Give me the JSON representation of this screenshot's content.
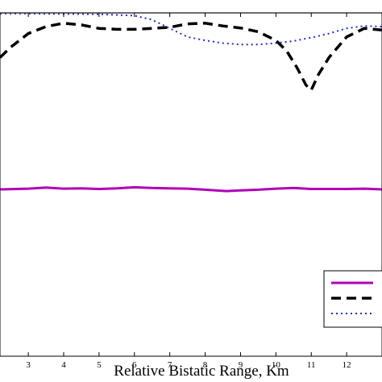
{
  "chart_data": {
    "type": "line",
    "title": "",
    "xlabel": "Relative Bistatic Range, Km",
    "ylabel": "",
    "xlim": [
      2.2,
      13.0
    ],
    "ylim": [
      0,
      1
    ],
    "xticks": [
      3,
      4,
      5,
      6,
      7,
      8,
      9,
      10,
      11,
      12
    ],
    "grid": false,
    "legend_placement": "bottom-right",
    "series": [
      {
        "name": "",
        "style": "solid",
        "color": "#b000b8",
        "x": [
          2.2,
          3.0,
          3.5,
          4.0,
          4.5,
          5.0,
          5.5,
          6.0,
          6.5,
          7.0,
          7.5,
          8.0,
          8.6,
          9.0,
          9.5,
          10.0,
          10.5,
          11.0,
          11.5,
          12.0,
          12.5,
          13.0
        ],
        "y": [
          0.486,
          0.488,
          0.491,
          0.488,
          0.489,
          0.487,
          0.489,
          0.492,
          0.49,
          0.489,
          0.488,
          0.485,
          0.481,
          0.483,
          0.485,
          0.488,
          0.49,
          0.487,
          0.487,
          0.487,
          0.488,
          0.486
        ]
      },
      {
        "name": "",
        "style": "dashed",
        "color": "#000000",
        "x": [
          2.2,
          2.5,
          3.0,
          3.5,
          4.0,
          4.5,
          5.0,
          5.5,
          6.0,
          6.5,
          7.0,
          7.5,
          8.0,
          8.5,
          9.0,
          9.5,
          10.0,
          10.3,
          10.6,
          10.85,
          11.0,
          11.2,
          11.5,
          12.0,
          12.5,
          13.0
        ],
        "y": [
          0.87,
          0.9,
          0.94,
          0.96,
          0.97,
          0.965,
          0.955,
          0.952,
          0.952,
          0.955,
          0.958,
          0.968,
          0.97,
          0.962,
          0.956,
          0.945,
          0.92,
          0.89,
          0.84,
          0.79,
          0.775,
          0.82,
          0.87,
          0.93,
          0.955,
          0.95
        ]
      },
      {
        "name": "",
        "style": "dotted",
        "color": "#1f2fd0",
        "x": [
          2.2,
          3.0,
          4.0,
          5.0,
          6.0,
          6.5,
          7.0,
          7.5,
          8.0,
          8.5,
          9.0,
          9.5,
          10.0,
          10.5,
          11.0,
          11.5,
          12.0,
          12.5,
          13.0
        ],
        "y": [
          0.998,
          0.998,
          0.997,
          0.996,
          0.992,
          0.98,
          0.955,
          0.93,
          0.92,
          0.912,
          0.908,
          0.908,
          0.912,
          0.918,
          0.928,
          0.94,
          0.955,
          0.962,
          0.96
        ]
      },
      {
        "name": "",
        "style": "solid",
        "color": "#b0b0b0",
        "x": [
          2.2,
          4.0,
          6.0,
          8.0,
          10.0,
          12.0,
          13.0
        ],
        "y": [
          1.0,
          1.0,
          1.0,
          1.0,
          1.0,
          1.0,
          1.0
        ]
      }
    ]
  }
}
